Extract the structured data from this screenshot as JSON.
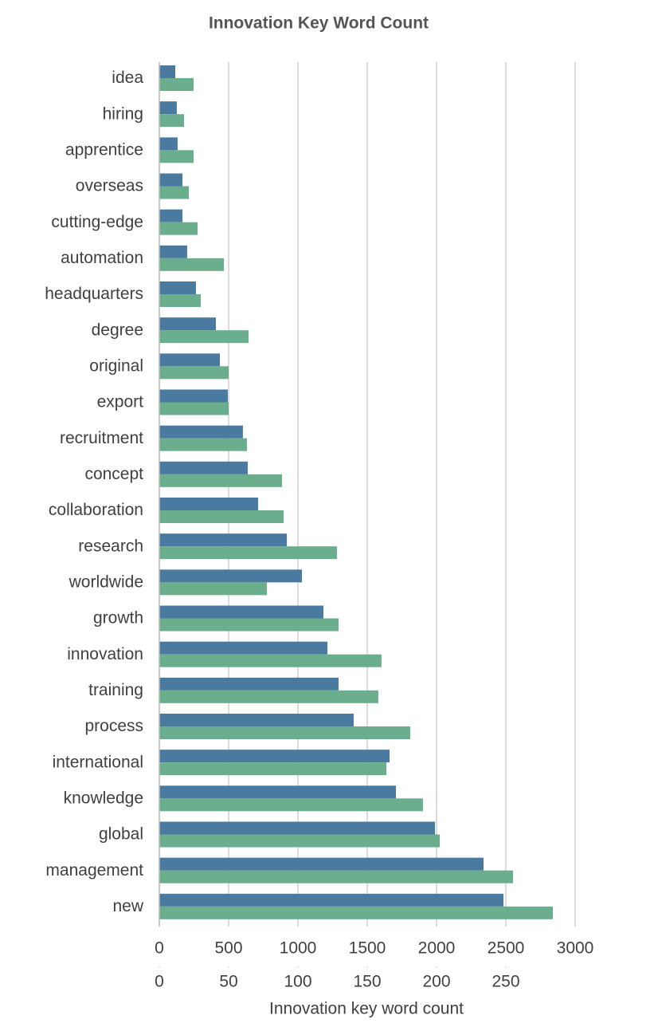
{
  "chart_data": {
    "type": "bar",
    "orientation": "horizontal",
    "title": "Innovation Key Word Count",
    "x_label": "Innovation key word count",
    "categories": [
      "idea",
      "hiring",
      "apprentice",
      "overseas",
      "cutting-edge",
      "automation",
      "headquarters",
      "degree",
      "original",
      "export",
      "recruitment",
      "concept",
      "collaboration",
      "research",
      "worldwide",
      "growth",
      "innovation",
      "training",
      "process",
      "international",
      "knowledge",
      "global",
      "management",
      "new"
    ],
    "series": [
      {
        "color": "#4a7a9f",
        "values": [
          115,
          126,
          132,
          167,
          167,
          201,
          264,
          408,
          437,
          494,
          603,
          638,
          713,
          920,
          1029,
          1184,
          1213,
          1293,
          1402,
          1661,
          1707,
          1989,
          2339,
          2483
        ]
      },
      {
        "color": "#6aae8e",
        "values": [
          247,
          178,
          247,
          213,
          276,
          466,
          299,
          644,
          500,
          500,
          632,
          885,
          897,
          1282,
          776,
          1293,
          1603,
          1580,
          1810,
          1638,
          1902,
          2023,
          2552,
          2839
        ]
      }
    ],
    "xlim": [
      0,
      3000
    ],
    "xticks": [
      0,
      500,
      1000,
      1500,
      2000,
      2500,
      3000
    ],
    "x2lim": [
      0,
      300
    ],
    "x2ticks": [
      0,
      50,
      100,
      150,
      200,
      250
    ],
    "grid": true
  }
}
